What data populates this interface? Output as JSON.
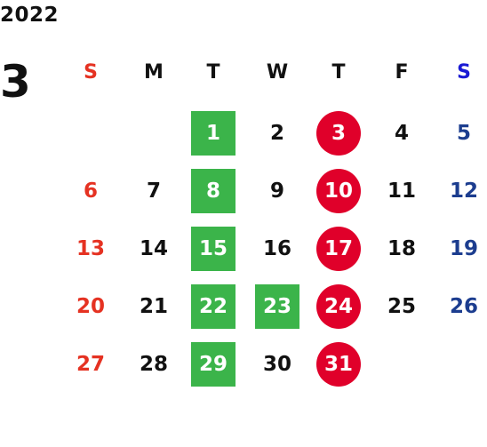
{
  "calendar": {
    "year": "2022",
    "month": "3",
    "weekday_headers": [
      "S",
      "M",
      "T",
      "W",
      "T",
      "F",
      "S"
    ],
    "days_in_month": 31,
    "first_weekday_index": 2,
    "colors": {
      "sunday_text": "#e53222",
      "saturday_text": "#1c3d8f",
      "saturday_header": "#1a1ad4",
      "weekday_text": "#111111",
      "green_marker": "#3bb44a",
      "red_marker": "#e0002a"
    },
    "green_square_days": [
      1,
      8,
      15,
      22,
      23,
      29
    ],
    "red_circle_days": [
      3,
      10,
      17,
      24,
      31
    ]
  }
}
